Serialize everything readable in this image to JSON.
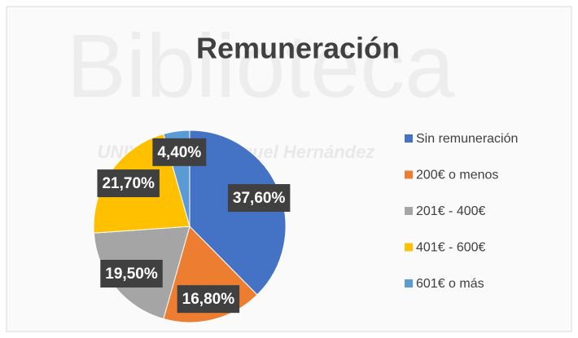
{
  "chart_data": {
    "type": "pie",
    "title": "Remuneración",
    "watermark": "Biblioteca",
    "watermark_subtitle": "UNIVERSITAS Miguel Hernández",
    "categories": [
      "Sin remuneración",
      "200€ o menos",
      "201€ - 400€",
      "401€ - 600€",
      "601€ o más"
    ],
    "values": [
      37.6,
      16.8,
      19.5,
      21.7,
      4.4
    ],
    "value_labels": [
      "37,60%",
      "16,80%",
      "19,50%",
      "21,70%",
      "4,40%"
    ],
    "colors": [
      "#4472c4",
      "#ed7d31",
      "#a5a5a5",
      "#ffc000",
      "#5b9bd5"
    ],
    "legend": "right"
  }
}
